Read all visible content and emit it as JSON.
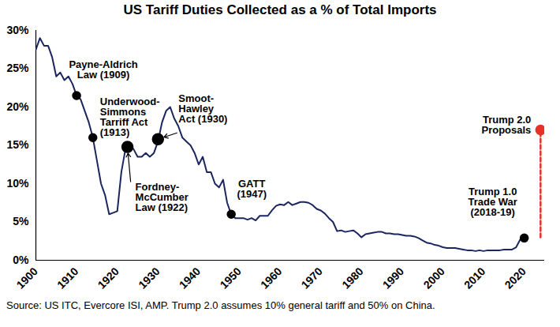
{
  "chart_data": {
    "type": "line",
    "title": "US Tariff Duties Collected as a % of Total Imports",
    "caption": "Source: US ITC, Evercore ISI, AMP. Trump 2.0 assumes 10% general tariff and 50% on China.",
    "x": [
      1900,
      1901,
      1902,
      1903,
      1904,
      1905,
      1906,
      1907,
      1908,
      1909,
      1910,
      1911,
      1912,
      1913,
      1914,
      1915,
      1916,
      1917,
      1918,
      1919,
      1920,
      1921,
      1922,
      1923,
      1924,
      1925,
      1926,
      1927,
      1928,
      1929,
      1930,
      1931,
      1932,
      1933,
      1934,
      1935,
      1936,
      1937,
      1938,
      1939,
      1940,
      1941,
      1942,
      1943,
      1944,
      1945,
      1946,
      1947,
      1948,
      1949,
      1950,
      1951,
      1952,
      1953,
      1954,
      1955,
      1956,
      1957,
      1958,
      1959,
      1960,
      1961,
      1962,
      1963,
      1964,
      1965,
      1966,
      1967,
      1968,
      1969,
      1970,
      1971,
      1972,
      1973,
      1974,
      1975,
      1976,
      1977,
      1978,
      1979,
      1980,
      1981,
      1982,
      1983,
      1984,
      1985,
      1986,
      1987,
      1988,
      1989,
      1990,
      1991,
      1992,
      1993,
      1994,
      1995,
      1996,
      1997,
      1998,
      1999,
      2000,
      2001,
      2002,
      2003,
      2004,
      2005,
      2006,
      2007,
      2008,
      2009,
      2010,
      2011,
      2012,
      2013,
      2014,
      2015,
      2016,
      2017,
      2018,
      2019,
      2020
    ],
    "values": [
      27.5,
      29,
      28,
      28,
      26.5,
      24,
      24.5,
      23.5,
      24,
      23,
      21.5,
      21,
      19.5,
      18,
      16,
      13,
      10,
      8.5,
      6,
      6.2,
      6.4,
      11.5,
      14.5,
      15,
      14.5,
      13.5,
      13.5,
      14,
      13.5,
      14,
      15.5,
      18,
      19.5,
      20,
      18.5,
      17.5,
      16,
      15.5,
      15,
      14,
      12.5,
      13.5,
      11.5,
      11.5,
      10,
      9.5,
      10.5,
      7.5,
      6,
      5.5,
      5.5,
      5.5,
      5.3,
      5.5,
      5.2,
      5.8,
      5.8,
      5.8,
      6.5,
      7.1,
      7.3,
      7.2,
      7.6,
      7.2,
      7.4,
      7.6,
      7.6,
      7.5,
      7.2,
      6.7,
      6.5,
      6.1,
      5.5,
      5,
      3.8,
      3.9,
      3.7,
      3.8,
      3.9,
      3.5,
      3,
      3.4,
      3.5,
      3.6,
      3.7,
      3.7,
      3.5,
      3.5,
      3.4,
      3.4,
      3.3,
      3.2,
      3.2,
      3.1,
      2.9,
      2.6,
      2.3,
      2.2,
      2,
      1.9,
      1.7,
      1.6,
      1.6,
      1.6,
      1.5,
      1.4,
      1.3,
      1.3,
      1.2,
      1.3,
      1.2,
      1.3,
      1.3,
      1.3,
      1.3,
      1.4,
      1.4,
      1.4,
      1.7,
      2.7,
      2.9
    ],
    "color": "#1b2660",
    "xlim": [
      1900,
      2025
    ],
    "xticks": [
      1900,
      1910,
      1920,
      1930,
      1940,
      1950,
      1960,
      1970,
      1980,
      1990,
      2000,
      2010,
      2020
    ],
    "ylim": [
      0,
      30
    ],
    "yticks": [
      {
        "value": 0,
        "label": "0%"
      },
      {
        "value": 5,
        "label": "5%"
      },
      {
        "value": 10,
        "label": "10%"
      },
      {
        "value": 15,
        "label": "15%"
      },
      {
        "value": 20,
        "label": "20%"
      },
      {
        "value": 25,
        "label": "25%"
      },
      {
        "value": 30,
        "label": "30%"
      }
    ],
    "grid": false,
    "annotations": [
      {
        "text": "Payne-Aldrich\nLaw (1909)",
        "x": 1910,
        "y": 21.5
      },
      {
        "text": "Underwood-\nSimmons\nTarriff Act\n(1913)",
        "x": 1914,
        "y": 16
      },
      {
        "text": "Fordney-\nMcCumber\nLaw (1922)",
        "x": 1922.5,
        "y": 14.8
      },
      {
        "text": "Smoot-\nHawley\nAct (1930)",
        "x": 1930,
        "y": 15.8
      },
      {
        "text": "GATT\n(1947)",
        "x": 1948,
        "y": 6
      },
      {
        "text": "Trump 1.0\nTrade War\n(2018-19)",
        "x": 2020,
        "y": 2.9
      }
    ],
    "projection": {
      "label": "Trump 2.0\nProposals",
      "x": [
        2024,
        2024
      ],
      "values": [
        3,
        17
      ],
      "color": "#e5332a",
      "line_style": "dashed",
      "marker": "circle"
    }
  }
}
